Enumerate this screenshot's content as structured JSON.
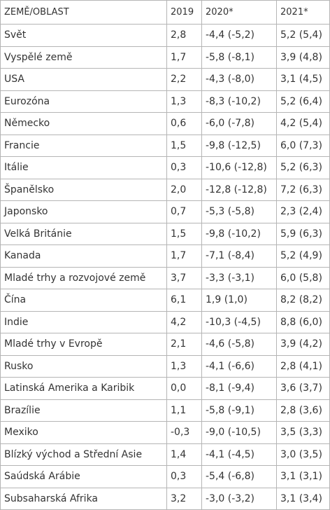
{
  "table": {
    "header": [
      "ZEMĚ/OBLAST",
      "2019",
      "2020*",
      "2021*"
    ],
    "rows": [
      [
        "Svět",
        "2,8",
        "-4,4 (-5,2)",
        "5,2 (5,4)"
      ],
      [
        "Vyspělé země",
        "1,7",
        "-5,8 (-8,1)",
        "3,9 (4,8)"
      ],
      [
        "USA",
        "2,2",
        "-4,3 (-8,0)",
        "3,1 (4,5)"
      ],
      [
        "Eurozóna",
        "1,3",
        "-8,3 (-10,2)",
        "5,2 (6,4)"
      ],
      [
        "Německo",
        "0,6",
        "-6,0 (-7,8)",
        "4,2 (5,4)"
      ],
      [
        "Francie",
        "1,5",
        "-9,8 (-12,5)",
        "6,0 (7,3)"
      ],
      [
        "Itálie",
        "0,3",
        "-10,6 (-12,8)",
        "5,2 (6,3)"
      ],
      [
        "Španělsko",
        "2,0",
        "-12,8 (-12,8)",
        "7,2 (6,3)"
      ],
      [
        "Japonsko",
        "0,7",
        "-5,3 (-5,8)",
        "2,3 (2,4)"
      ],
      [
        "Velká Británie",
        "1,5",
        "-9,8 (-10,2)",
        "5,9 (6,3)"
      ],
      [
        "Kanada",
        "1,7",
        "-7,1 (-8,4)",
        "5,2 (4,9)"
      ],
      [
        "Mladé trhy a rozvojové země",
        "3,7",
        "-3,3 (-3,1)",
        "6,0 (5,8)"
      ],
      [
        "Čína",
        "6,1",
        "1,9 (1,0)",
        "8,2 (8,2)"
      ],
      [
        "Indie",
        "4,2",
        "-10,3 (-4,5)",
        "8,8 (6,0)"
      ],
      [
        "Mladé trhy v Evropě",
        "2,1",
        "-4,6 (-5,8)",
        "3,9 (4,2)"
      ],
      [
        "Rusko",
        "1,3",
        "-4,1 (-6,6)",
        "2,8 (4,1)"
      ],
      [
        "Latinská Amerika a Karibik",
        "0,0",
        "-8,1 (-9,4)",
        "3,6 (3,7)"
      ],
      [
        "Brazílie",
        "1,1",
        "-5,8 (-9,1)",
        "2,8 (3,6)"
      ],
      [
        "Mexiko",
        "-0,3",
        "-9,0 (-10,5)",
        "3,5 (3,3)"
      ],
      [
        "Blízký východ a Střední Asie",
        "1,4",
        "-4,1 (-4,5)",
        "3,0 (3,5)"
      ],
      [
        "Saúdská Arábie",
        "0,3",
        "-5,4 (-6,8)",
        "3,1 (3,1)"
      ],
      [
        "Subsaharská Afrika",
        "3,2",
        "-3,0 (-3,2)",
        "3,1 (3,4)"
      ]
    ]
  }
}
